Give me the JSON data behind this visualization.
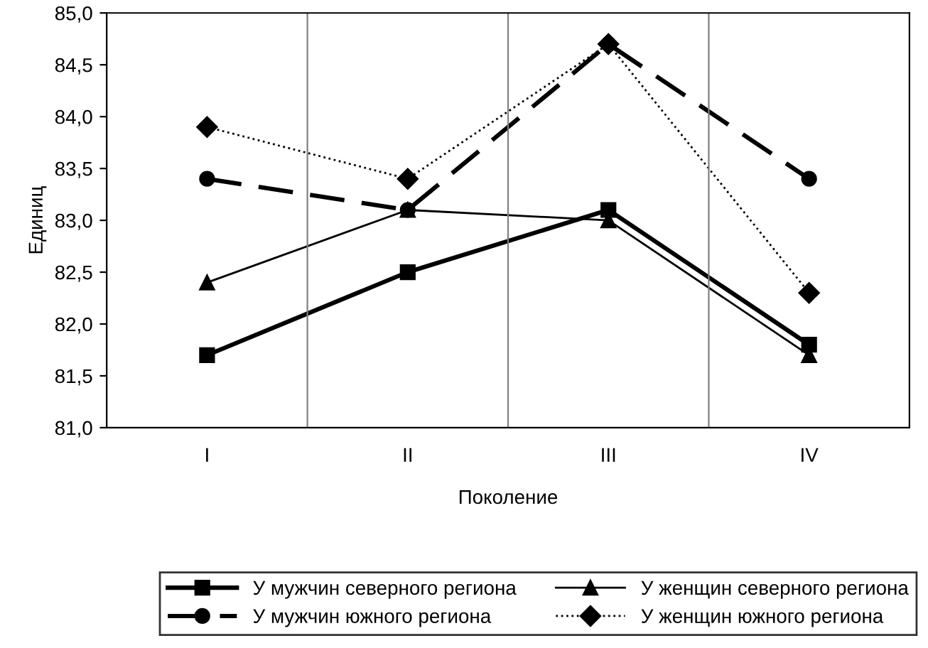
{
  "chart_data": {
    "type": "line",
    "xlabel": "Поколение",
    "ylabel": "Единиц",
    "categories": [
      "I",
      "II",
      "III",
      "IV"
    ],
    "ylim": [
      81,
      85
    ],
    "yticks": [
      {
        "value": 81,
        "label": "81,0"
      },
      {
        "value": 81.5,
        "label": "81,5"
      },
      {
        "value": 82,
        "label": "82,0"
      },
      {
        "value": 82.5,
        "label": "82,5"
      },
      {
        "value": 83,
        "label": "83,0"
      },
      {
        "value": 83.5,
        "label": "83,5"
      },
      {
        "value": 84,
        "label": "84,0"
      },
      {
        "value": 84.5,
        "label": "84,5"
      },
      {
        "value": 85,
        "label": "85,0"
      }
    ],
    "grid": "x",
    "legend": "bottom",
    "series": [
      {
        "name": "У мужчин северного региона",
        "color": "#000000",
        "marker": "square",
        "line_style": "solid",
        "values": [
          81.7,
          82.5,
          83.1,
          81.8
        ]
      },
      {
        "name": "У женщин северного региона",
        "color": "#000000",
        "marker": "triangle",
        "line_style": "solid",
        "values": [
          82.4,
          83.1,
          83.0,
          81.7
        ]
      },
      {
        "name": "У мужчин южного региона",
        "color": "#000000",
        "marker": "circle",
        "line_style": "dashed",
        "values": [
          83.4,
          83.1,
          84.7,
          83.4
        ]
      },
      {
        "name": "У женщин южного региона",
        "color": "#000000",
        "marker": "diamond",
        "line_style": "dotted",
        "values": [
          83.9,
          83.4,
          84.7,
          82.3
        ]
      }
    ]
  }
}
